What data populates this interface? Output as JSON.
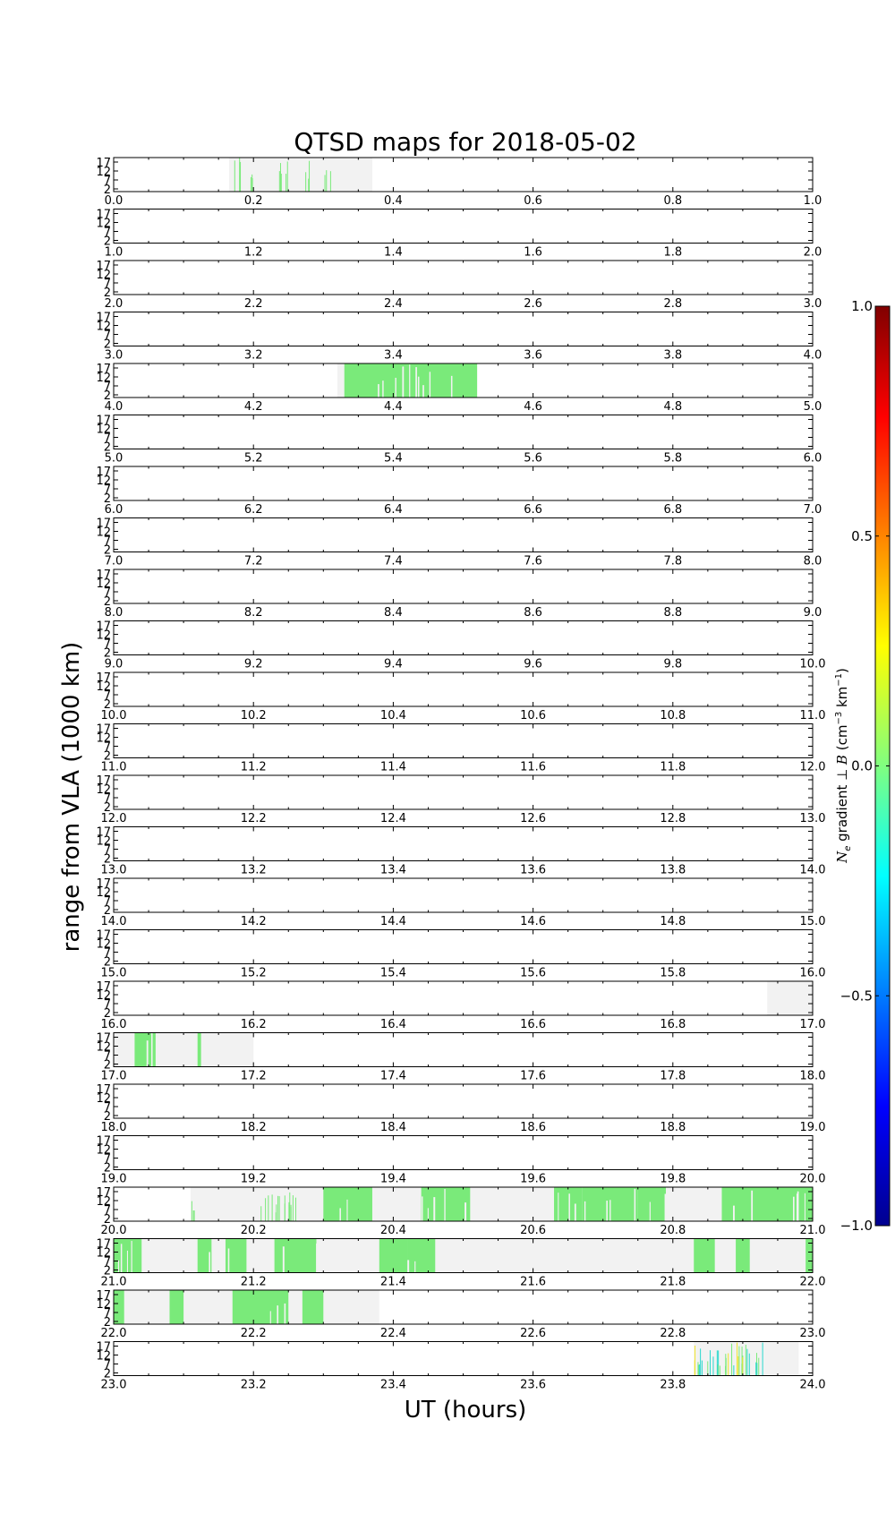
{
  "chart_data": {
    "type": "heatmap",
    "title": "QTSD maps for 2018-05-02",
    "xlabel": "UT (hours)",
    "ylabel": "range from VLA (1000 km)",
    "colorbar": {
      "label": "N_e gradient ⊥ B (cm⁻³ km⁻¹)",
      "label_parts": [
        "N",
        "e",
        " gradient ⊥ ",
        "B",
        " (cm",
        "−3",
        " km",
        "−1",
        ")"
      ],
      "range": [
        -1.0,
        1.0
      ],
      "ticks": [
        "1.0",
        "0.5",
        "0.0",
        "−0.5",
        "−1.0"
      ],
      "colormap": "jet"
    },
    "y_ticks": [
      "17",
      "12",
      "7",
      "2"
    ],
    "x_tick_labels_per_hour": [
      "0.0",
      "0.2",
      "0.4",
      "0.6",
      "0.8",
      "1.0"
    ],
    "colors": {
      "no_data": "#f2f2f2",
      "near_zero": "#7aea7a",
      "negative": "#2ad8ce",
      "positive": "#f0e52e",
      "axis": "#000000"
    },
    "panels": [
      {
        "hour": 0,
        "coverage": [
          [
            0.165,
            0.37
          ]
        ],
        "features": [
          [
            0.17,
            0.185,
            "sparse"
          ],
          [
            0.19,
            0.2,
            "sparse"
          ],
          [
            0.235,
            0.25,
            "sparse"
          ],
          [
            0.27,
            0.28,
            "sparse"
          ],
          [
            0.3,
            0.31,
            "sparse"
          ]
        ]
      },
      {
        "hour": 1,
        "coverage": [],
        "features": []
      },
      {
        "hour": 2,
        "coverage": [],
        "features": []
      },
      {
        "hour": 3,
        "coverage": [],
        "features": []
      },
      {
        "hour": 4,
        "coverage": [
          [
            0.32,
            0.52
          ]
        ],
        "features": [
          [
            0.33,
            0.52,
            "dense"
          ]
        ]
      },
      {
        "hour": 5,
        "coverage": [],
        "features": []
      },
      {
        "hour": 6,
        "coverage": [],
        "features": []
      },
      {
        "hour": 7,
        "coverage": [],
        "features": []
      },
      {
        "hour": 8,
        "coverage": [],
        "features": []
      },
      {
        "hour": 9,
        "coverage": [],
        "features": []
      },
      {
        "hour": 10,
        "coverage": [],
        "features": []
      },
      {
        "hour": 11,
        "coverage": [],
        "features": []
      },
      {
        "hour": 12,
        "coverage": [],
        "features": []
      },
      {
        "hour": 13,
        "coverage": [],
        "features": []
      },
      {
        "hour": 14,
        "coverage": [],
        "features": []
      },
      {
        "hour": 15,
        "coverage": [],
        "features": []
      },
      {
        "hour": 16,
        "coverage": [
          [
            0.935,
            1.0
          ]
        ],
        "features": []
      },
      {
        "hour": 17,
        "coverage": [
          [
            0.0,
            0.2
          ]
        ],
        "features": [
          [
            0.03,
            0.06,
            "dense"
          ],
          [
            0.12,
            0.125,
            "dense"
          ]
        ]
      },
      {
        "hour": 18,
        "coverage": [],
        "features": []
      },
      {
        "hour": 19,
        "coverage": [],
        "features": []
      },
      {
        "hour": 20,
        "coverage": [
          [
            0.11,
            1.0
          ]
        ],
        "features": [
          [
            0.11,
            0.115,
            "sparse"
          ],
          [
            0.21,
            0.26,
            "sparse"
          ],
          [
            0.3,
            0.37,
            "dense"
          ],
          [
            0.44,
            0.51,
            "dense"
          ],
          [
            0.63,
            0.67,
            "dense"
          ],
          [
            0.67,
            0.75,
            "dense"
          ],
          [
            0.75,
            0.79,
            "dense"
          ],
          [
            0.87,
            1.0,
            "dense"
          ]
        ]
      },
      {
        "hour": 21,
        "coverage": [
          [
            0.0,
            1.0
          ]
        ],
        "features": [
          [
            0.0,
            0.04,
            "dense"
          ],
          [
            0.12,
            0.14,
            "dense"
          ],
          [
            0.16,
            0.19,
            "dense"
          ],
          [
            0.23,
            0.29,
            "dense"
          ],
          [
            0.38,
            0.42,
            "dense"
          ],
          [
            0.42,
            0.46,
            "dense"
          ],
          [
            0.83,
            0.86,
            "dense"
          ],
          [
            0.89,
            0.91,
            "dense"
          ],
          [
            0.99,
            1.0,
            "dense"
          ]
        ]
      },
      {
        "hour": 22,
        "coverage": [
          [
            0.0,
            0.38
          ]
        ],
        "features": [
          [
            0.0,
            0.015,
            "dense"
          ],
          [
            0.08,
            0.1,
            "dense"
          ],
          [
            0.17,
            0.25,
            "dense"
          ],
          [
            0.27,
            0.3,
            "dense"
          ]
        ]
      },
      {
        "hour": 23,
        "coverage": [
          [
            0.83,
            0.98
          ]
        ],
        "features": [
          [
            0.83,
            0.87,
            "mixed"
          ],
          [
            0.87,
            0.93,
            "sparse-mixed"
          ]
        ]
      }
    ]
  }
}
